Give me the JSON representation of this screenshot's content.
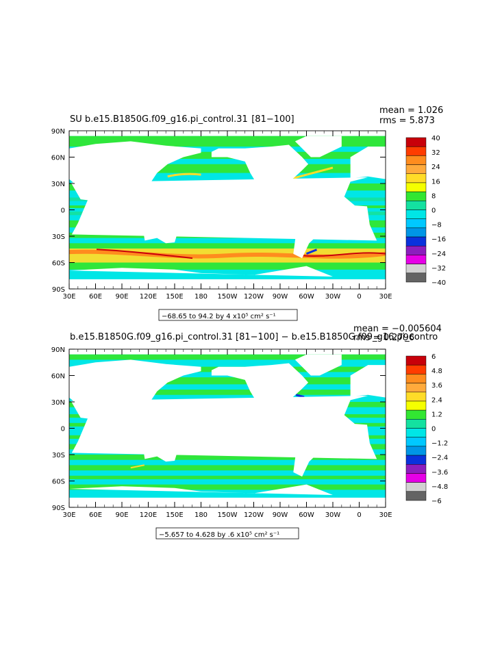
{
  "panels": [
    {
      "title": "SU b.e15.B1850G.f09_g16.pi_control.31  [81−100]",
      "mean_label": "mean = 1.026",
      "rms_label": "rms = 5.873",
      "range_label": "−68.65 to 94.2 by 4 x10⁵ cm² s⁻¹",
      "lat_labels": [
        "90N",
        "60N",
        "30N",
        "0",
        "30S",
        "60S",
        "90S"
      ],
      "lon_labels": [
        "30E",
        "60E",
        "90E",
        "120E",
        "150E",
        "180",
        "150W",
        "120W",
        "90W",
        "60W",
        "30W",
        "0",
        "30E"
      ],
      "colorbar_labels": [
        "40",
        "32",
        "24",
        "16",
        "8",
        "0",
        "−8",
        "−16",
        "−24",
        "−32",
        "−40"
      ]
    },
    {
      "title": "b.e15.B1850G.f09_g16.pi_control.31 [81−100] − b.e15.B1850G.f09_g16.pi_contro",
      "mean_label": "mean = −0.005604",
      "rms_label": "rms = 0.2796",
      "range_label": "−5.657 to 4.628 by .6 x10⁵ cm² s⁻¹",
      "lat_labels": [
        "90N",
        "60N",
        "30N",
        "0",
        "30S",
        "60S",
        "90S"
      ],
      "lon_labels": [
        "30E",
        "60E",
        "90E",
        "120E",
        "150E",
        "180",
        "150W",
        "120W",
        "90W",
        "60W",
        "30W",
        "0",
        "30E"
      ],
      "colorbar_labels": [
        "6",
        "4.8",
        "3.6",
        "2.4",
        "1.2",
        "0",
        "−1.2",
        "−2.4",
        "−3.6",
        "−4.8",
        "−6"
      ]
    }
  ],
  "colorbar_colors": [
    "#c8000a",
    "#ff3c00",
    "#ff8c1e",
    "#ffaa3c",
    "#ffdc28",
    "#f5ff00",
    "#32e632",
    "#14e1a0",
    "#00e6e6",
    "#00c8ff",
    "#0096e6",
    "#0a32dc",
    "#8c1ebe",
    "#e600e6",
    "#d2d2d2",
    "#646464"
  ],
  "map_colors": {
    "ocean_base": "#00e6e6",
    "band_low": "#32e632",
    "band_mid": "#14e1a0",
    "strong_pos": "#ffdc28",
    "strongest_pos": "#ff8c1e",
    "peak": "#c8000a",
    "neg": "#0a32dc",
    "land": "#ffffff"
  }
}
